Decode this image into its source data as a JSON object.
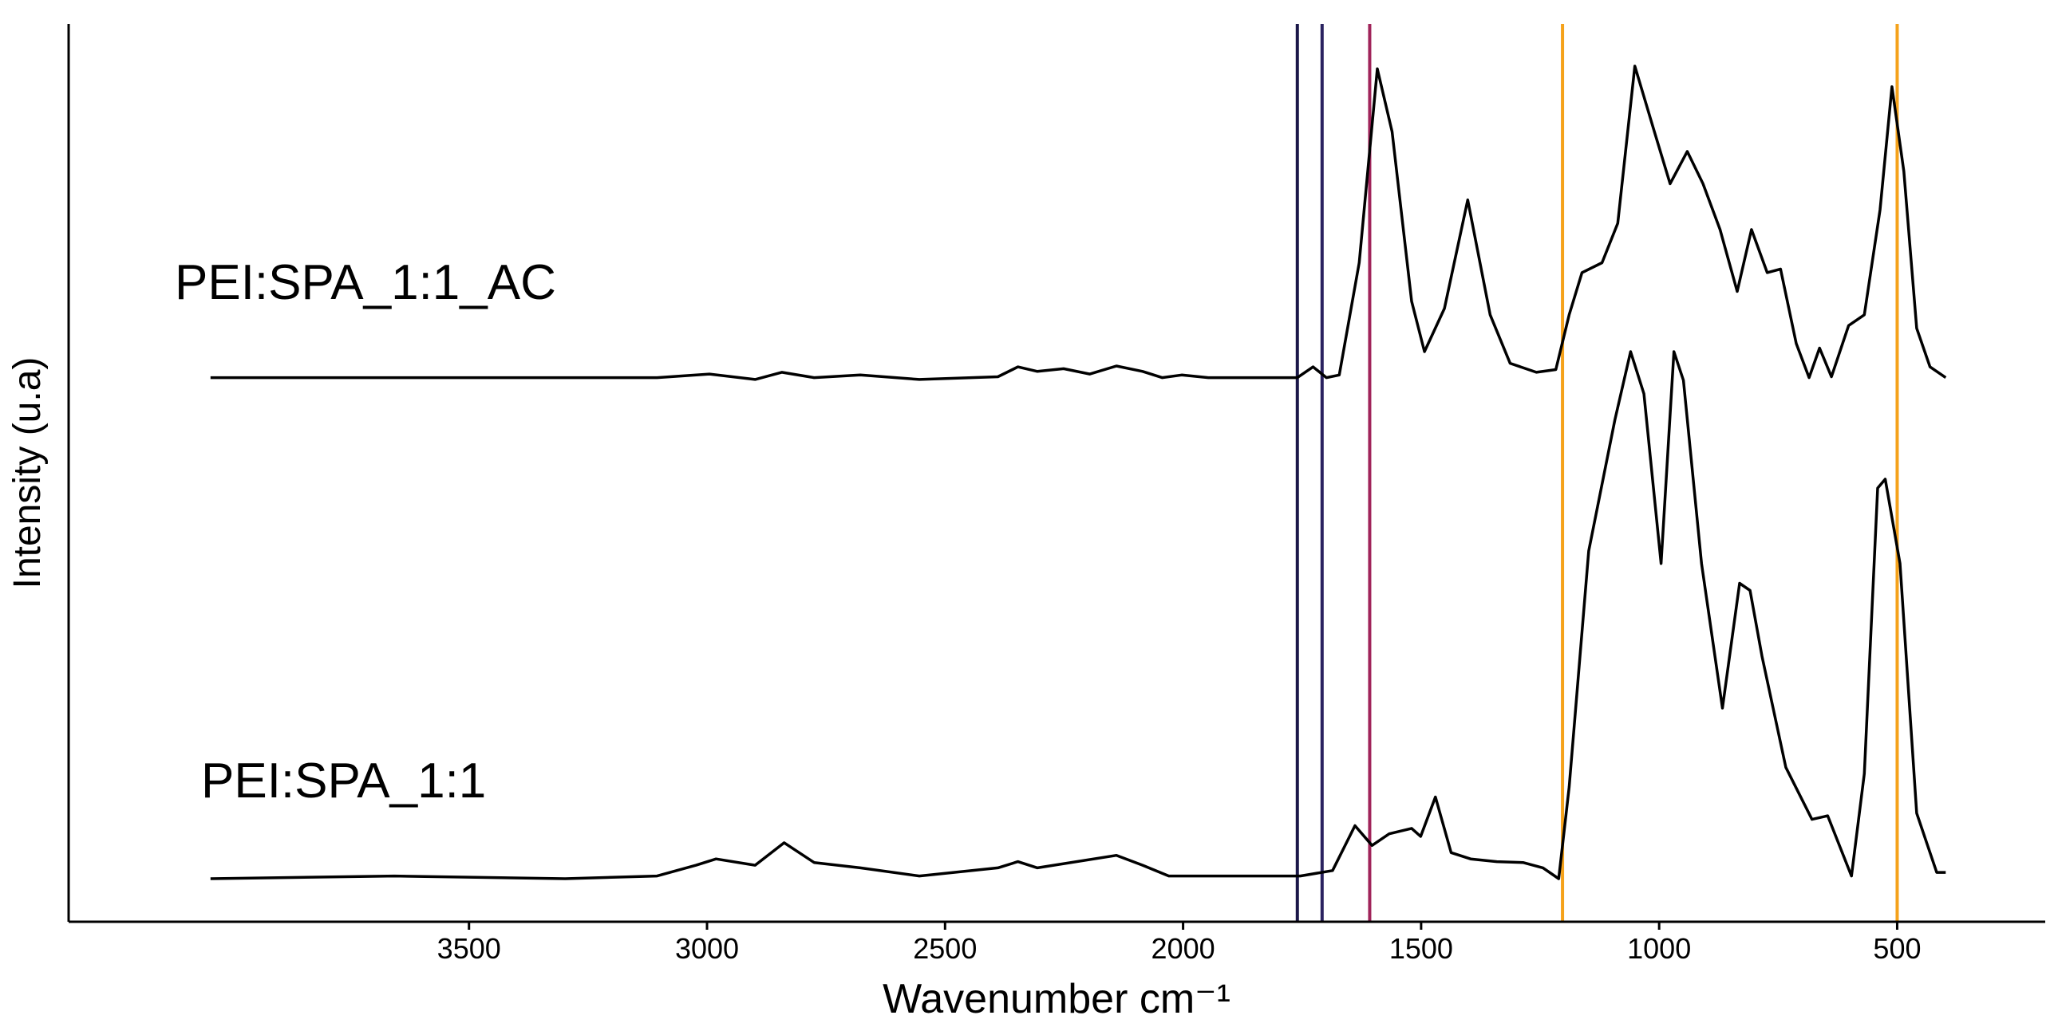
{
  "chart_data": {
    "type": "line",
    "xlabel": "Wavenumber cm⁻¹",
    "ylabel": "Intensity (u.a)",
    "xlim": [
      4341,
      189
    ],
    "ylim": [
      0,
      100
    ],
    "xticks": [
      3500,
      3000,
      2500,
      2000,
      1500,
      1000,
      500
    ],
    "vlines": [
      {
        "value": 1760,
        "color": "#1b1849"
      },
      {
        "value": 1708,
        "color": "#2a2260"
      },
      {
        "value": 1608,
        "color": "#a0245a"
      },
      {
        "value": 1203,
        "color": "#f5a21b"
      },
      {
        "value": 500,
        "color": "#f5a21b"
      }
    ],
    "series": [
      {
        "name": "PEI:SPA_1:1_AC",
        "color": "#000000",
        "x": [
          4043,
          3657,
          3105,
          2995,
          2899,
          2843,
          2775,
          2678,
          2554,
          2389,
          2347,
          2306,
          2251,
          2196,
          2140,
          2085,
          2044,
          2003,
          1947,
          1760,
          1727,
          1699,
          1672,
          1630,
          1592,
          1561,
          1520,
          1493,
          1451,
          1402,
          1355,
          1313,
          1258,
          1217,
          1189,
          1162,
          1120,
          1087,
          1051,
          1010,
          977,
          941,
          908,
          872,
          836,
          806,
          773,
          745,
          712,
          685,
          663,
          638,
          602,
          569,
          536,
          511,
          486,
          459,
          431,
          398
        ],
        "values": [
          60.6,
          60.6,
          60.6,
          61.0,
          60.4,
          61.2,
          60.6,
          60.9,
          60.4,
          60.7,
          61.8,
          61.3,
          61.6,
          61.0,
          61.9,
          61.3,
          60.6,
          60.9,
          60.6,
          60.6,
          61.8,
          60.6,
          60.9,
          73.4,
          95.0,
          88.0,
          69.1,
          63.5,
          68.3,
          80.4,
          67.6,
          62.2,
          61.2,
          61.5,
          67.6,
          72.3,
          73.4,
          77.8,
          95.3,
          88.0,
          82.2,
          85.8,
          82.2,
          77.1,
          70.2,
          77.1,
          72.3,
          72.7,
          64.4,
          60.6,
          63.9,
          60.7,
          66.4,
          67.6,
          79.3,
          93.0,
          83.6,
          66.1,
          61.8,
          60.6
        ]
      },
      {
        "name": "PEI:SPA_1:1",
        "color": "#000000",
        "x": [
          4043,
          3657,
          3298,
          3105,
          3023,
          2981,
          2899,
          2838,
          2775,
          2678,
          2554,
          2389,
          2347,
          2306,
          2140,
          2085,
          2030,
          1947,
          1754,
          1686,
          1639,
          1603,
          1567,
          1520,
          1501,
          1470,
          1437,
          1396,
          1341,
          1286,
          1244,
          1211,
          1189,
          1148,
          1093,
          1060,
          1032,
          996,
          969,
          949,
          911,
          867,
          831,
          809,
          784,
          734,
          679,
          646,
          596,
          569,
          541,
          525,
          494,
          459,
          417,
          398
        ],
        "values": [
          4.8,
          5.1,
          4.8,
          5.1,
          6.3,
          7.0,
          6.3,
          8.8,
          6.6,
          6.0,
          5.1,
          6.0,
          6.7,
          6.0,
          7.4,
          6.3,
          5.1,
          5.1,
          5.1,
          5.7,
          10.7,
          8.5,
          9.8,
          10.4,
          9.5,
          13.9,
          7.7,
          7.0,
          6.7,
          6.6,
          6.0,
          4.8,
          15.0,
          41.3,
          55.9,
          63.5,
          58.8,
          39.9,
          63.5,
          60.3,
          39.9,
          23.8,
          37.7,
          36.9,
          29.6,
          17.2,
          11.4,
          11.8,
          5.1,
          16.5,
          48.3,
          49.3,
          39.9,
          12.1,
          5.5,
          5.5
        ]
      }
    ]
  }
}
